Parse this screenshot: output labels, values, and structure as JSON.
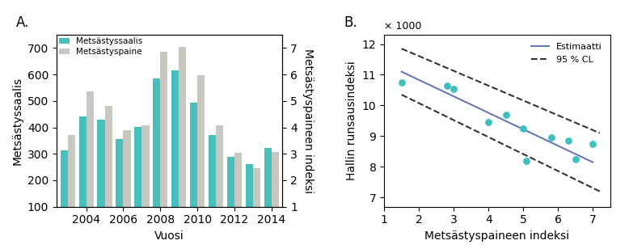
{
  "chart_data": [
    {
      "type": "bar",
      "title": "A.",
      "categories": [
        null,
        "2004",
        null,
        "2006",
        null,
        "2008",
        null,
        "2010",
        null,
        "2012",
        null,
        "2014"
      ],
      "series": [
        {
          "name": "Metsästyssaalis",
          "color": "#47bfbf",
          "values": [
            313,
            440,
            428,
            355,
            402,
            585,
            617,
            492,
            372,
            288,
            261,
            323
          ]
        },
        {
          "name": "Metsästyspaine",
          "color": "#c8c8c0",
          "values": [
            372,
            537,
            480,
            390,
            408,
            685,
            703,
            598,
            407,
            303,
            246,
            307
          ]
        }
      ],
      "xlabel": "Vuosi",
      "ylabel": "Metsästyssaalis",
      "y2label": "Metsästyspaineen indeksi",
      "ylim": [
        100,
        750
      ],
      "yticks": [
        100,
        200,
        300,
        400,
        500,
        600,
        700
      ],
      "y2lim": [
        1,
        7.5
      ],
      "y2ticks": [
        1,
        2,
        3,
        4,
        5,
        6,
        7
      ],
      "legend": "upper left"
    },
    {
      "type": "scatter",
      "title": "B.",
      "annotation": "× 1000",
      "xlabel": "Metsästyspaineen indeksi",
      "ylabel": "Hallin runsausindeksi",
      "xlim": [
        1,
        7.5
      ],
      "xticks": [
        1,
        2,
        3,
        4,
        5,
        6,
        7
      ],
      "ylim": [
        6.7,
        12.3
      ],
      "yticks": [
        7,
        8,
        9,
        10,
        11,
        12
      ],
      "series": [
        {
          "type": "scatter",
          "marker": "o",
          "color": "#3fbfbf",
          "x": [
            1.5,
            2.8,
            3.0,
            4.0,
            4.5,
            5.0,
            5.1,
            5.8,
            6.3,
            6.5,
            7.0
          ],
          "values": [
            10.75,
            10.65,
            10.55,
            9.45,
            9.7,
            9.25,
            8.2,
            8.95,
            8.85,
            8.25,
            8.75
          ]
        },
        {
          "name": "Estimaatti",
          "type": "line",
          "line_style": "solid",
          "color": "#6878b0",
          "x": [
            1.5,
            7.0
          ],
          "values": [
            11.1,
            8.15
          ]
        },
        {
          "name": "95 % CL",
          "type": "line",
          "line_style": "dashed",
          "color": "#333333",
          "x": [
            1.5,
            7.2
          ],
          "values": [
            11.85,
            9.1
          ]
        },
        {
          "type": "line",
          "line_style": "dashed",
          "color": "#333333",
          "x": [
            1.5,
            7.2
          ],
          "values": [
            10.35,
            7.2
          ]
        }
      ],
      "legend": "upper right"
    }
  ]
}
